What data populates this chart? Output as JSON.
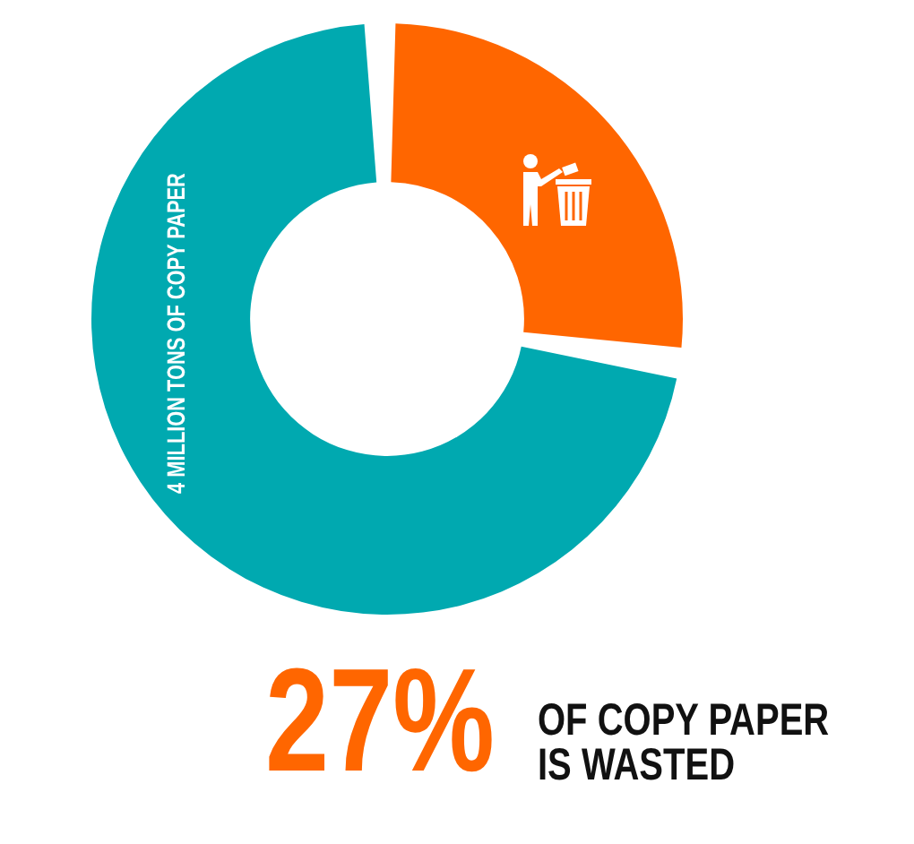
{
  "chart_data": {
    "type": "donut",
    "categories": [
      null,
      "4 MILLION TONS OF COPY PAPER"
    ],
    "values": [
      27,
      73
    ],
    "colors": [
      "#ff6600",
      "#00a9b0"
    ],
    "legend": false,
    "annotations": [
      "27%",
      "OF COPY PAPER\nIS WASTED"
    ]
  }
}
